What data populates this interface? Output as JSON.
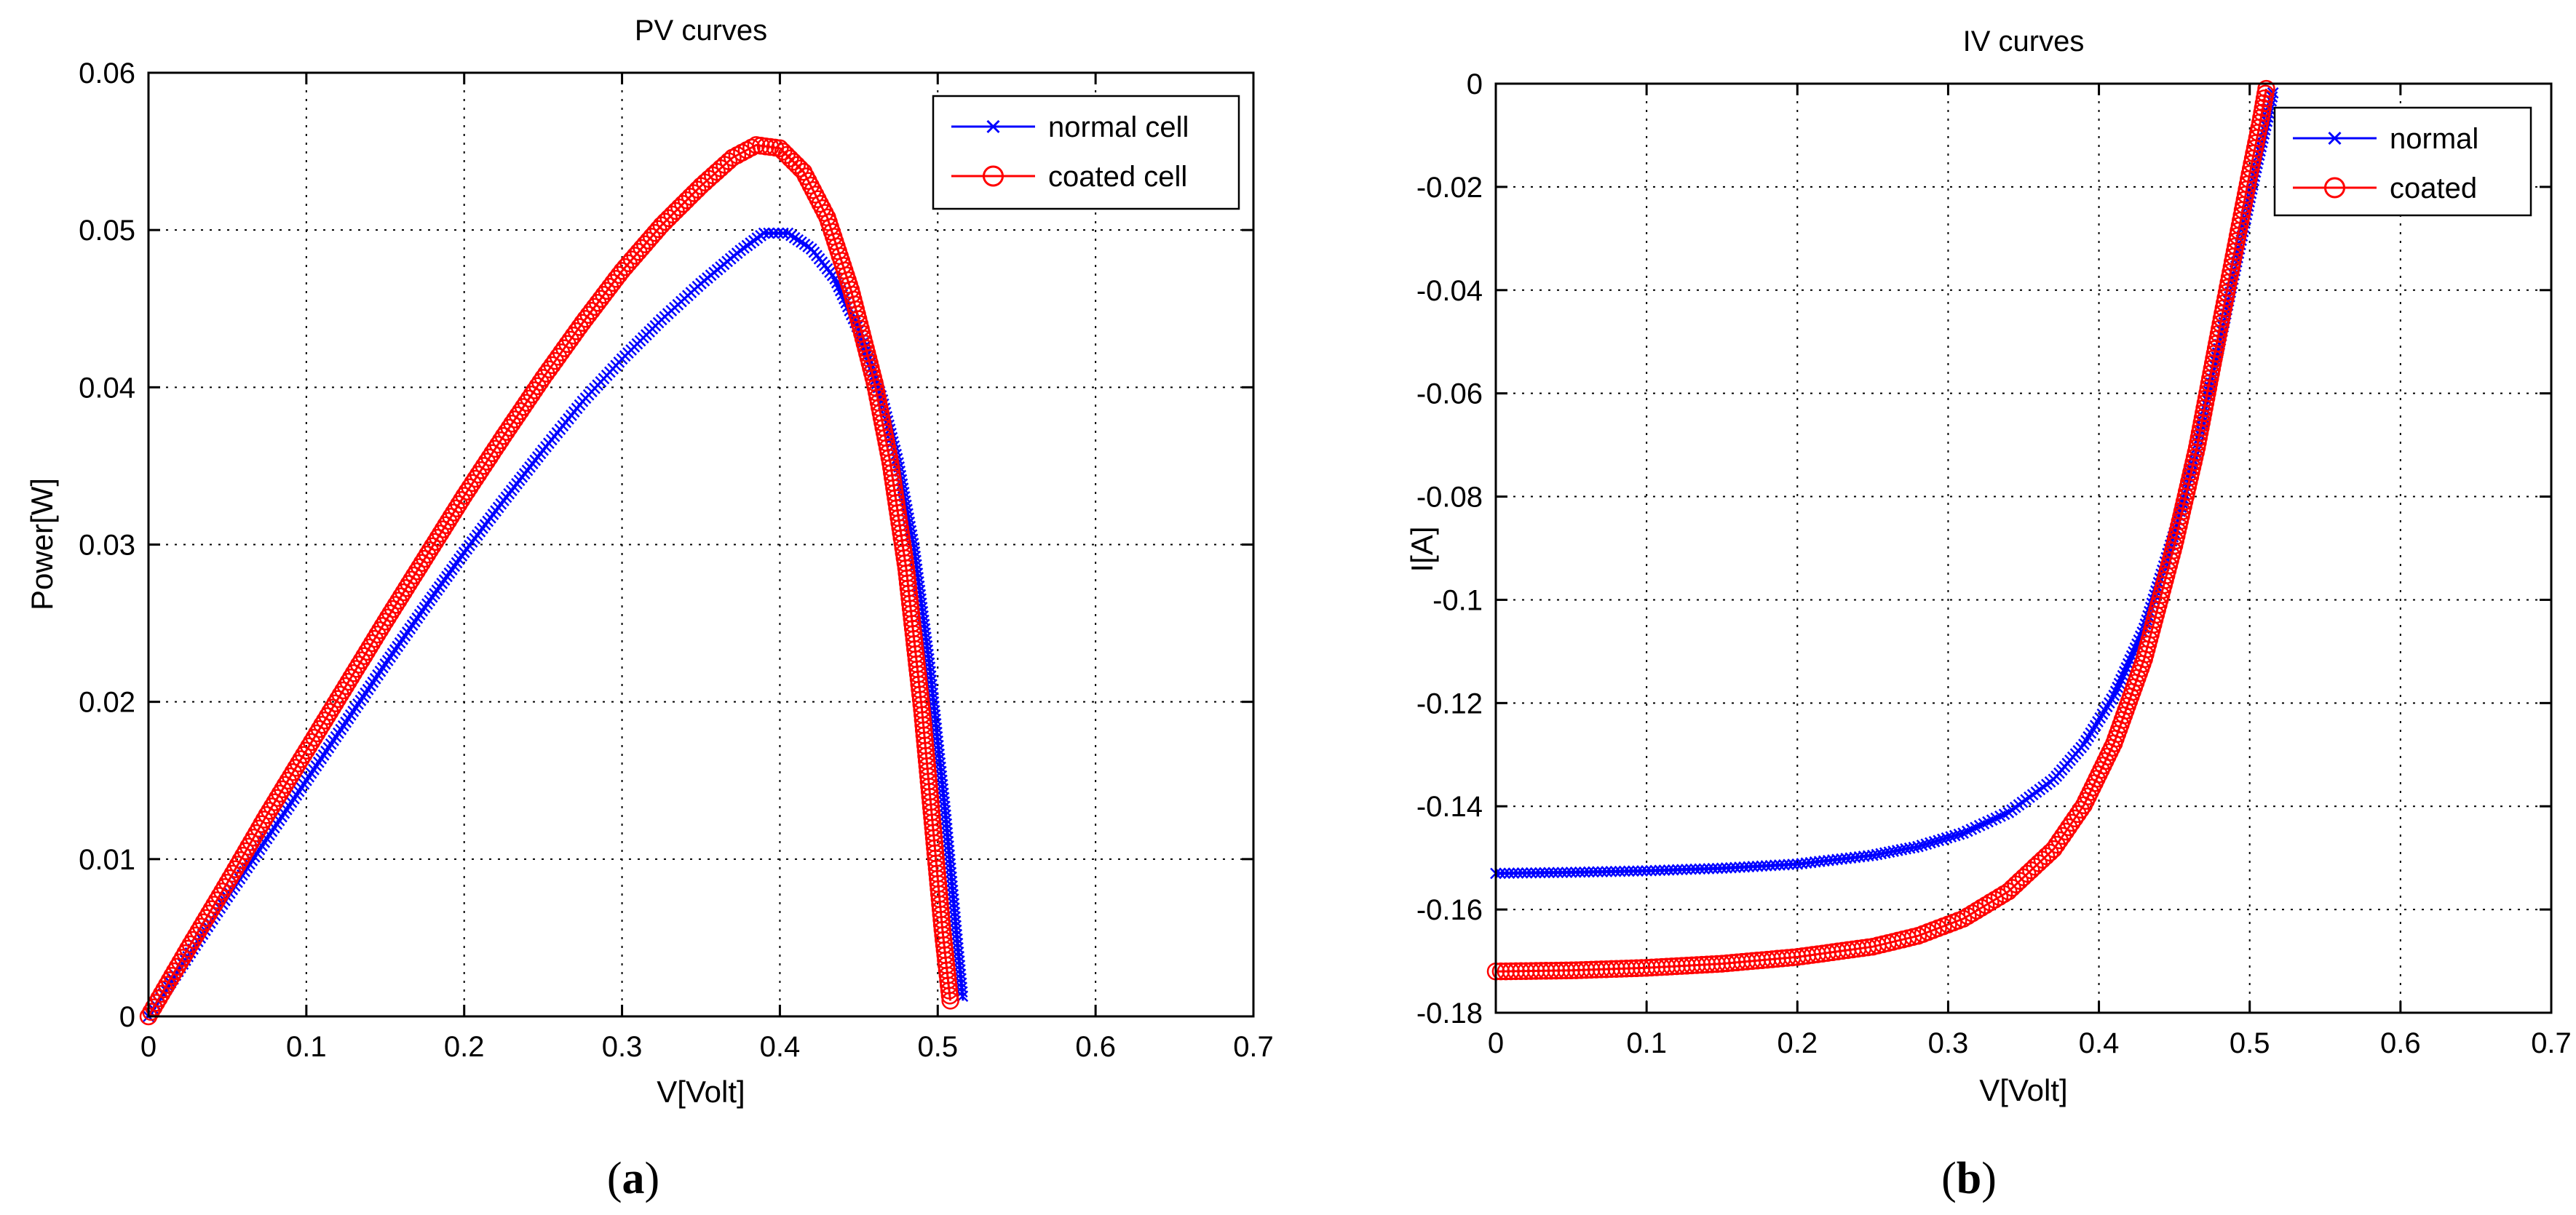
{
  "chart_data": [
    {
      "type": "line",
      "title": "PV curves",
      "xlabel": "V[Volt]",
      "ylabel": "Power[W]",
      "xlim": [
        0,
        0.7
      ],
      "ylim": [
        0,
        0.06
      ],
      "xticks": [
        0,
        0.1,
        0.2,
        0.3,
        0.4,
        0.5,
        0.6,
        0.7
      ],
      "xtick_labels": [
        "0",
        "0.1",
        "0.2",
        "0.3",
        "0.4",
        "0.5",
        "0.6",
        "0.7"
      ],
      "yticks": [
        0,
        0.01,
        0.02,
        0.03,
        0.04,
        0.05,
        0.06
      ],
      "ytick_labels": [
        "0",
        "0.01",
        "0.02",
        "0.03",
        "0.04",
        "0.05",
        "0.06"
      ],
      "grid": true,
      "legend_position": "top-right",
      "caption_open": "(",
      "caption_letter": "a",
      "caption_close": ")",
      "series": [
        {
          "name": "normal cell",
          "color": "#0000ff",
          "marker": "x",
          "x": [
            0,
            0.025,
            0.05,
            0.075,
            0.1,
            0.125,
            0.15,
            0.175,
            0.2,
            0.225,
            0.25,
            0.275,
            0.3,
            0.325,
            0.35,
            0.375,
            0.39,
            0.405,
            0.42,
            0.435,
            0.45,
            0.465,
            0.475,
            0.485,
            0.495,
            0.505,
            0.512,
            0.516
          ],
          "values": [
            0,
            0.0038,
            0.0076,
            0.0113,
            0.015,
            0.0187,
            0.0224,
            0.026,
            0.0295,
            0.0328,
            0.036,
            0.0391,
            0.0418,
            0.0443,
            0.0466,
            0.0487,
            0.0498,
            0.0498,
            0.0488,
            0.0469,
            0.0436,
            0.0392,
            0.0352,
            0.0298,
            0.0222,
            0.0128,
            0.0052,
            0.001
          ]
        },
        {
          "name": "coated cell",
          "color": "#ff0000",
          "marker": "o",
          "x": [
            0,
            0.025,
            0.05,
            0.075,
            0.1,
            0.125,
            0.15,
            0.175,
            0.2,
            0.225,
            0.25,
            0.275,
            0.3,
            0.325,
            0.35,
            0.37,
            0.385,
            0.4,
            0.415,
            0.43,
            0.445,
            0.46,
            0.47,
            0.48,
            0.49,
            0.497,
            0.503,
            0.508
          ],
          "values": [
            0,
            0.0043,
            0.0085,
            0.0128,
            0.0169,
            0.021,
            0.0251,
            0.0291,
            0.0331,
            0.0369,
            0.0406,
            0.0441,
            0.0474,
            0.0503,
            0.0528,
            0.0546,
            0.0554,
            0.0552,
            0.0537,
            0.0508,
            0.0462,
            0.0403,
            0.0352,
            0.0285,
            0.0195,
            0.012,
            0.0055,
            0.001
          ]
        }
      ]
    },
    {
      "type": "line",
      "title": "IV curves",
      "xlabel": "V[Volt]",
      "ylabel": "I[A]",
      "xlim": [
        0,
        0.7
      ],
      "ylim": [
        -0.18,
        0
      ],
      "xticks": [
        0,
        0.1,
        0.2,
        0.3,
        0.4,
        0.5,
        0.6,
        0.7
      ],
      "xtick_labels": [
        "0",
        "0.1",
        "0.2",
        "0.3",
        "0.4",
        "0.5",
        "0.6",
        "0.7"
      ],
      "yticks": [
        0,
        -0.02,
        -0.04,
        -0.06,
        -0.08,
        -0.1,
        -0.12,
        -0.14,
        -0.16,
        -0.18
      ],
      "ytick_labels": [
        "0",
        "-0.02",
        "-0.04",
        "-0.06",
        "-0.08",
        "-0.1",
        "-0.12",
        "-0.14",
        "-0.16",
        "-0.18"
      ],
      "grid": true,
      "legend_position": "top-right",
      "caption_open": "(",
      "caption_letter": "b",
      "caption_close": ")",
      "series": [
        {
          "name": "normal",
          "color": "#0000ff",
          "marker": "x",
          "x": [
            0,
            0.05,
            0.1,
            0.15,
            0.2,
            0.25,
            0.28,
            0.31,
            0.34,
            0.37,
            0.39,
            0.41,
            0.43,
            0.45,
            0.465,
            0.48,
            0.495,
            0.505,
            0.512,
            0.516
          ],
          "values": [
            -0.153,
            -0.1528,
            -0.1525,
            -0.152,
            -0.1512,
            -0.1495,
            -0.1478,
            -0.1452,
            -0.1412,
            -0.1348,
            -0.128,
            -0.1185,
            -0.1055,
            -0.087,
            -0.0705,
            -0.0505,
            -0.0295,
            -0.0155,
            -0.0065,
            -0.001
          ]
        },
        {
          "name": "coated",
          "color": "#ff0000",
          "marker": "o",
          "x": [
            0,
            0.05,
            0.1,
            0.15,
            0.2,
            0.25,
            0.28,
            0.31,
            0.34,
            0.37,
            0.39,
            0.41,
            0.43,
            0.45,
            0.465,
            0.48,
            0.49,
            0.5,
            0.507,
            0.511
          ],
          "values": [
            -0.172,
            -0.1718,
            -0.1713,
            -0.1705,
            -0.1692,
            -0.1672,
            -0.1651,
            -0.1618,
            -0.1565,
            -0.1483,
            -0.1398,
            -0.1278,
            -0.1115,
            -0.0895,
            -0.0705,
            -0.0475,
            -0.0325,
            -0.0175,
            -0.0075,
            -0.001
          ]
        }
      ]
    }
  ]
}
